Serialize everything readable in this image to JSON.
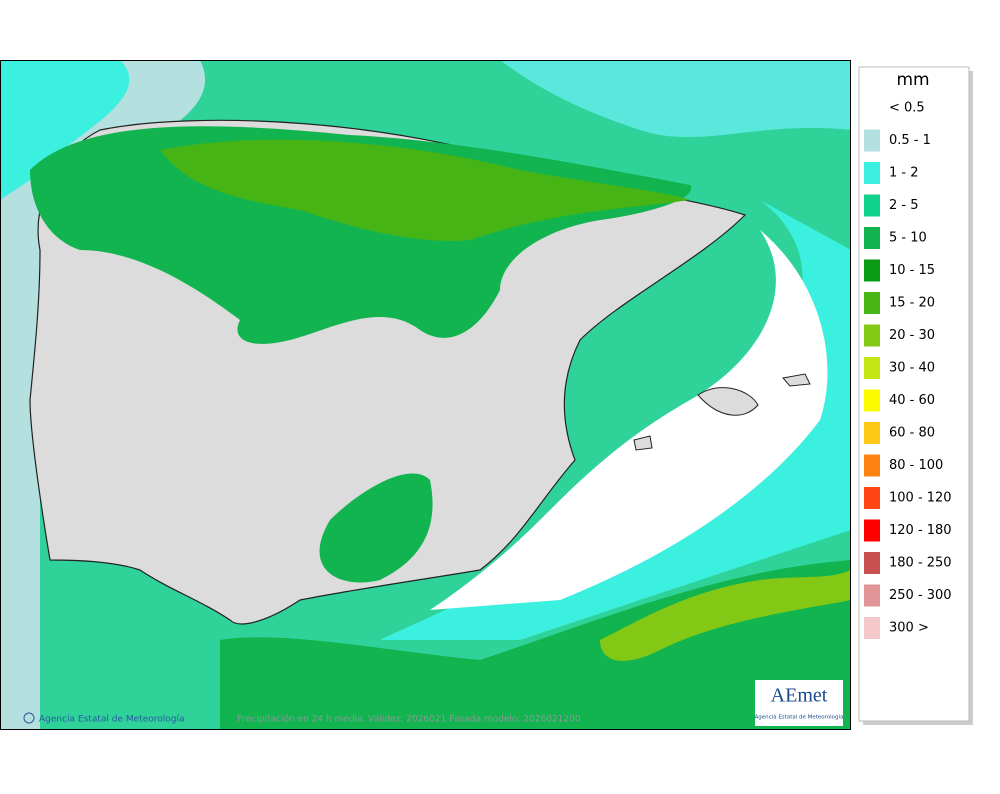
{
  "legend": {
    "title": "mm",
    "items": [
      {
        "label": "< 0.5",
        "color": "#ffffff"
      },
      {
        "label": "0.5 - 1",
        "color": "#b4e0e0"
      },
      {
        "label": "1 - 2",
        "color": "#3cf0e0"
      },
      {
        "label": "2 - 5",
        "color": "#10d28c"
      },
      {
        "label": "5 - 10",
        "color": "#12b450"
      },
      {
        "label": "10 - 15",
        "color": "#0a9a14"
      },
      {
        "label": "15 - 20",
        "color": "#46b414"
      },
      {
        "label": "20 - 30",
        "color": "#82c814"
      },
      {
        "label": "30 - 40",
        "color": "#c4e614"
      },
      {
        "label": "40 - 60",
        "color": "#fafa00"
      },
      {
        "label": "60 - 80",
        "color": "#ffc814"
      },
      {
        "label": "80 - 100",
        "color": "#ff8214"
      },
      {
        "label": "100 - 120",
        "color": "#ff4614"
      },
      {
        "label": "120 - 180",
        "color": "#ff0000"
      },
      {
        "label": "180 - 250",
        "color": "#c85050"
      },
      {
        "label": "250 - 300",
        "color": "#e09696"
      },
      {
        "label": "300 >",
        "color": "#f4c8c8"
      }
    ]
  },
  "footer": {
    "credit": "Agencia Estatal de Meteorología",
    "caption": "Precipitación en 24 h media. Validez: 2026021 Pasada modelo: 2026021200"
  },
  "logo": {
    "name": "AEmet",
    "subtitle": "Agencia Estatal de Meteorología"
  }
}
